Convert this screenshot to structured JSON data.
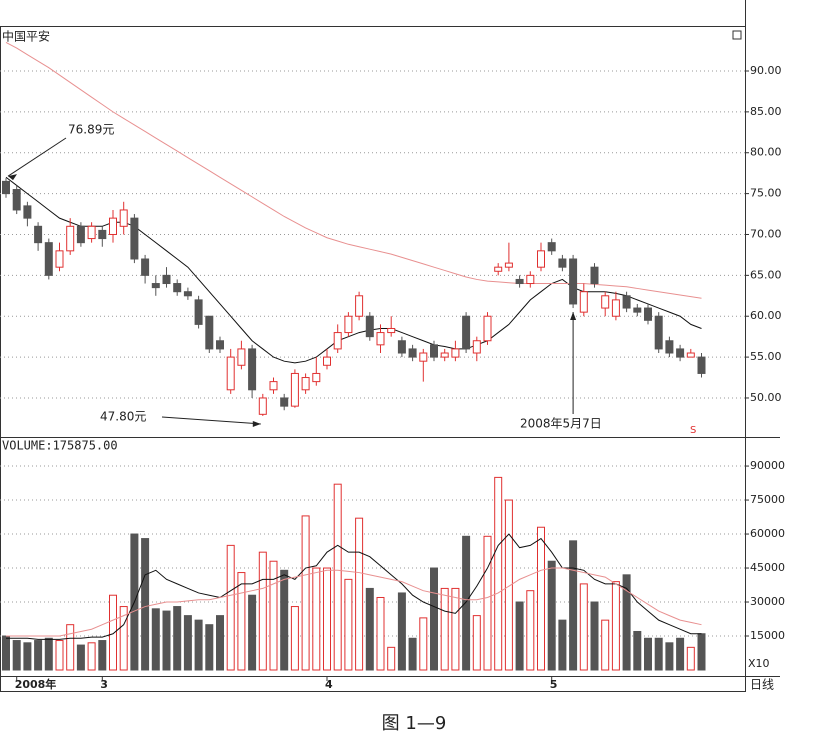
{
  "chart_data": [
    {
      "type": "candlestick",
      "title": "中国平安",
      "open": [
        76.5,
        75.5,
        73.5,
        71,
        69,
        66,
        68,
        71,
        69.5,
        70.5,
        70,
        71,
        72,
        67,
        64,
        65,
        64,
        63,
        62,
        60,
        57,
        51,
        54,
        56,
        48,
        51,
        50,
        49,
        51,
        52,
        54,
        56,
        58,
        60,
        60,
        56.5,
        58,
        57,
        56,
        54.5,
        56.5,
        55,
        55,
        60,
        55.5,
        57,
        65.5,
        66,
        64.5,
        64,
        66,
        69,
        67,
        67,
        60.5,
        66,
        61,
        60,
        62.5,
        61,
        61,
        60,
        57,
        56,
        55,
        55
      ],
      "high": [
        76.89,
        76,
        74,
        71.5,
        69.5,
        69,
        72,
        71.5,
        71.5,
        71,
        73,
        74,
        72.5,
        67.5,
        65,
        66,
        64.5,
        63.5,
        62.5,
        60,
        57.5,
        56,
        57,
        56.5,
        50.5,
        52.5,
        50.5,
        53.5,
        53,
        55,
        56,
        59,
        60.5,
        63,
        60.5,
        59,
        60,
        57.5,
        56.5,
        56,
        57,
        56,
        57,
        60.5,
        57.5,
        60.5,
        66.5,
        69,
        65,
        65.5,
        69,
        69.5,
        67.5,
        67.5,
        64,
        66.5,
        63,
        63,
        63,
        61.5,
        61.5,
        60.5,
        57.5,
        56.5,
        56,
        55.5
      ],
      "low": [
        74.5,
        72.5,
        71,
        68,
        64.5,
        65.5,
        67.5,
        68.5,
        69,
        68.5,
        69,
        70,
        66.5,
        64,
        62.5,
        63.5,
        62.5,
        62,
        58.5,
        55.5,
        55.5,
        50.5,
        53.5,
        50,
        47.8,
        50.5,
        48.5,
        48.8,
        50.5,
        51.5,
        53.5,
        55.5,
        57.5,
        59.5,
        57,
        55.5,
        57.5,
        55,
        54.5,
        52,
        54.5,
        54.5,
        54.5,
        55.5,
        54.5,
        56.5,
        65,
        65.5,
        63.5,
        63.5,
        65.5,
        67.5,
        65.5,
        61,
        60,
        63.5,
        60,
        59.5,
        60.5,
        60,
        59,
        55.5,
        55,
        54.5,
        55,
        52.5
      ],
      "close": [
        75,
        73,
        72,
        69,
        65,
        68,
        71,
        69,
        71,
        69.5,
        72,
        73,
        67,
        65,
        63.5,
        64,
        63,
        62.5,
        59,
        56,
        56,
        55,
        56,
        51,
        50,
        52,
        49,
        53,
        52.5,
        53,
        55,
        58,
        60,
        62.5,
        57.5,
        58,
        58.5,
        55.5,
        55,
        55.5,
        55,
        55.5,
        56,
        56,
        57,
        60,
        66,
        66.5,
        64,
        65,
        68,
        68,
        66,
        61.5,
        63,
        64,
        62.5,
        62,
        61,
        60.5,
        59.5,
        56,
        55.5,
        55,
        55.5,
        53
      ],
      "up_color": "#e03030",
      "down_color": "#555555",
      "lines": [
        {
          "color": "#111111",
          "values": [
            77,
            76,
            75,
            74,
            73,
            72,
            71.5,
            71,
            71,
            71,
            71.5,
            71.5,
            71,
            70,
            69,
            68,
            67,
            66,
            64.5,
            63,
            61.5,
            60,
            58.5,
            57,
            56,
            55,
            54.5,
            54.3,
            54.5,
            55,
            56,
            57,
            57.5,
            58,
            58.3,
            58.5,
            58.5,
            58,
            57.5,
            57,
            56.5,
            56.3,
            56,
            56,
            56.5,
            57,
            58,
            59,
            60.5,
            62,
            63,
            64,
            64.5,
            63.5,
            63,
            63,
            63,
            62.8,
            62.5,
            62,
            61.5,
            61,
            60.5,
            60,
            59,
            58.5
          ]
        },
        {
          "color": "#e89090",
          "values": [
            93.5,
            92.8,
            92,
            91.2,
            90.4,
            89.5,
            88.6,
            87.7,
            86.8,
            85.9,
            85,
            84.2,
            83.4,
            82.6,
            81.8,
            81,
            80.2,
            79.4,
            78.6,
            77.8,
            77,
            76.2,
            75.4,
            74.6,
            73.8,
            73,
            72.2,
            71.5,
            70.8,
            70.2,
            69.6,
            69.2,
            68.8,
            68.5,
            68.2,
            67.9,
            67.6,
            67.2,
            66.8,
            66.4,
            66,
            65.6,
            65.2,
            64.8,
            64.5,
            64.3,
            64.2,
            64.1,
            64,
            64,
            64,
            64,
            64,
            64,
            64,
            63.9,
            63.8,
            63.7,
            63.6,
            63.4,
            63.2,
            63,
            62.8,
            62.6,
            62.4,
            62.2
          ]
        }
      ],
      "annotations": [
        "76.89元",
        "47.80元",
        "2008年5月7日",
        "S"
      ],
      "ylim": [
        45.47,
        95.26
      ],
      "yticks": [
        {
          "value": 50,
          "label": "50.00"
        },
        {
          "value": 55,
          "label": "55.00"
        },
        {
          "value": 60,
          "label": "60.00"
        },
        {
          "value": 65,
          "label": "65.00"
        },
        {
          "value": 70,
          "label": "70.00"
        },
        {
          "value": 75,
          "label": "75.00"
        },
        {
          "value": 80,
          "label": "80.00"
        },
        {
          "value": 85,
          "label": "85.00"
        },
        {
          "value": 90,
          "label": "90.00"
        }
      ],
      "grid": true
    },
    {
      "type": "volume",
      "title": "VOLUME:175875.00",
      "categories": [
        null,
        "2008年",
        null,
        null,
        null,
        null,
        null,
        null,
        null,
        "3",
        null,
        null,
        null,
        null,
        null,
        null,
        null,
        null,
        null,
        null,
        null,
        null,
        null,
        null,
        null,
        null,
        null,
        null,
        null,
        null,
        "4",
        null,
        null,
        null,
        null,
        null,
        null,
        null,
        null,
        null,
        null,
        null,
        null,
        null,
        null,
        null,
        null,
        null,
        null,
        null,
        null,
        "5",
        null,
        null,
        null,
        null,
        null,
        null,
        null,
        null,
        null,
        null,
        null,
        null,
        null,
        null
      ],
      "values": [
        15000,
        13000,
        12000,
        13000,
        14000,
        13000,
        20000,
        11000,
        12000,
        13000,
        33000,
        28000,
        60000,
        58000,
        27000,
        26000,
        28000,
        24000,
        22000,
        20000,
        24000,
        55000,
        43000,
        33000,
        52000,
        48000,
        44000,
        28000,
        68000,
        45000,
        45000,
        82000,
        40000,
        67000,
        36000,
        32000,
        10000,
        34000,
        14000,
        23000,
        45000,
        36000,
        36000,
        59000,
        24000,
        59000,
        85000,
        75000,
        30000,
        35000,
        63000,
        48000,
        22000,
        57000,
        38000,
        30000,
        22000,
        39000,
        42000,
        17000,
        14000,
        14000,
        12000,
        14000,
        10000,
        16000
      ],
      "lines": [
        {
          "color": "#111111",
          "values": [
            14000,
            14000,
            14000,
            13500,
            13500,
            13500,
            14000,
            14000,
            14500,
            14500,
            16000,
            20000,
            30000,
            42000,
            44000,
            40000,
            38000,
            36000,
            34000,
            33000,
            32000,
            35000,
            38000,
            38000,
            40000,
            40000,
            42000,
            40000,
            45000,
            46000,
            52000,
            55000,
            52000,
            52000,
            50000,
            46000,
            42000,
            38000,
            33000,
            30000,
            28000,
            26000,
            25000,
            30000,
            37000,
            45000,
            55000,
            60000,
            54000,
            55000,
            58000,
            52000,
            45000,
            45000,
            44000,
            40000,
            38000,
            38000,
            36000,
            30000,
            26000,
            22000,
            20000,
            18000,
            16000,
            16000
          ]
        },
        {
          "color": "#e89090",
          "values": [
            15000,
            15000,
            15000,
            15000,
            15000,
            15000,
            16000,
            17000,
            18000,
            20000,
            22000,
            24000,
            26000,
            28000,
            29000,
            30000,
            30000,
            30500,
            31000,
            31000,
            32000,
            33000,
            34000,
            35000,
            36000,
            38000,
            40000,
            41000,
            42000,
            43000,
            44000,
            44000,
            43500,
            43000,
            42000,
            41000,
            40000,
            39000,
            37000,
            35000,
            34000,
            33000,
            32000,
            31000,
            31000,
            32000,
            34000,
            37000,
            40000,
            42000,
            44000,
            45000,
            45000,
            44000,
            43000,
            42000,
            41000,
            38000,
            35000,
            32000,
            29000,
            26000,
            24000,
            22000,
            21000,
            20000
          ]
        }
      ],
      "unit_label": "X10",
      "period_label": "日线",
      "ylim": [
        0,
        101500
      ],
      "yticks": [
        15000,
        30000,
        45000,
        60000,
        75000,
        90000
      ],
      "grid": true
    }
  ],
  "caption": "图 1—9"
}
